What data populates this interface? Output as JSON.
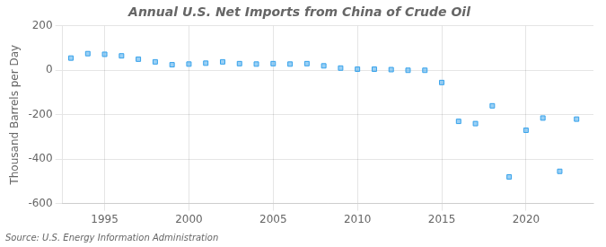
{
  "chart_data": {
    "type": "scatter",
    "title": "Annual U.S. Net Imports from China of Crude Oil",
    "ylabel": "Thousand Barrels per Day",
    "annotations": [
      "Source: U.S. Energy Information Administration"
    ],
    "x": [
      1993,
      1994,
      1995,
      1996,
      1997,
      1998,
      1999,
      2000,
      2001,
      2002,
      2003,
      2004,
      2005,
      2006,
      2007,
      2008,
      2009,
      2010,
      2011,
      2012,
      2013,
      2014,
      2015,
      2016,
      2017,
      2018,
      2019,
      2020,
      2021,
      2022,
      2023
    ],
    "values": [
      55,
      75,
      72,
      65,
      50,
      38,
      25,
      28,
      32,
      38,
      30,
      28,
      30,
      28,
      30,
      20,
      10,
      5,
      5,
      3,
      0,
      0,
      -55,
      -230,
      -240,
      -160,
      -480,
      -270,
      -215,
      -455,
      -220
    ],
    "xlim": [
      1992.5,
      2024
    ],
    "xticks": [
      1995,
      2000,
      2005,
      2010,
      2015,
      2020
    ],
    "ylim": [
      -600,
      200
    ],
    "yticks": [
      -600,
      -400,
      -200,
      0,
      200
    ],
    "marker": "square",
    "grid": true
  }
}
